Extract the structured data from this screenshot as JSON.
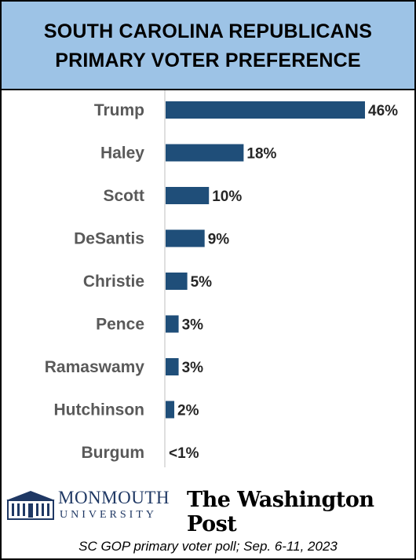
{
  "header": {
    "title_line1": "SOUTH CAROLINA REPUBLICANS",
    "title_line2": "PRIMARY VOTER PREFERENCE"
  },
  "colors": {
    "header_bg": "#9dc3e6",
    "bar": "#1f4e79",
    "axis": "#bfbfbf",
    "label": "#595959"
  },
  "chart_data": {
    "type": "bar",
    "orientation": "horizontal",
    "categories": [
      "Trump",
      "Haley",
      "Scott",
      "DeSantis",
      "Christie",
      "Pence",
      "Ramaswamy",
      "Hutchinson",
      "Burgum"
    ],
    "values": [
      46,
      18,
      10,
      9,
      5,
      3,
      3,
      2,
      0.4
    ],
    "data_labels": [
      "46%",
      "18%",
      "10%",
      "9%",
      "5%",
      "3%",
      "3%",
      "2%",
      "<1%"
    ],
    "xlim": [
      0,
      46
    ],
    "title": "SOUTH CAROLINA REPUBLICANS PRIMARY VOTER PREFERENCE"
  },
  "logos": {
    "monmouth_line1": "MONMOUTH",
    "monmouth_line2": "UNIVERSITY",
    "washington_post": "The Washington Post"
  },
  "footnote": "SC GOP primary voter poll;  Sep. 6-11, 2023"
}
